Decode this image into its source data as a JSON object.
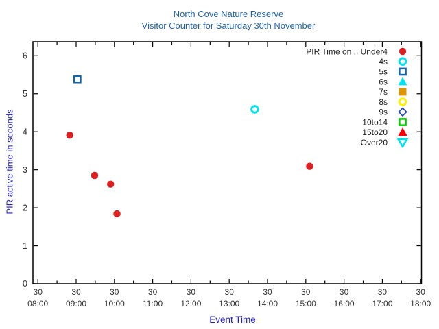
{
  "chart_data": {
    "type": "scatter",
    "title": "North Cove Nature Reserve",
    "subtitle": "Visitor Counter for Saturday 30th November",
    "xlabel": "Event Time",
    "ylabel": "PIR active time in seconds",
    "x_tick_day": "30",
    "x_ticks": [
      "08:00",
      "09:00",
      "10:00",
      "11:00",
      "12:00",
      "13:00",
      "14:00",
      "15:00",
      "16:00",
      "17:00",
      "18:00"
    ],
    "x_minor_tick_minutes": 30,
    "y_ticks": [
      0,
      1,
      2,
      3,
      4,
      5,
      6
    ],
    "ylim": [
      0,
      6.37
    ],
    "xlim_hours_after_0800": [
      -0.13,
      10.04
    ],
    "grid": false,
    "legend_position": "top-right-inside",
    "colors": {
      "title_text": "#1f63ad",
      "axis_label_text": "#2424cc",
      "tick_text": "#333333",
      "legend_text": "#1a1a1a",
      "border": "#000000"
    },
    "series": [
      {
        "label": "PIR Time on .. Under4",
        "marker": "circle-filled",
        "color": "#dd1f1f",
        "points": [
          {
            "time": "08:50",
            "seconds": 3.91
          },
          {
            "time": "09:29",
            "seconds": 2.85
          },
          {
            "time": "09:54",
            "seconds": 2.62
          },
          {
            "time": "10:04",
            "seconds": 1.84
          },
          {
            "time": "15:06",
            "seconds": 3.09
          }
        ]
      },
      {
        "label": "4s",
        "marker": "circle-open",
        "color": "#00e2ee",
        "points": [
          {
            "time": "13:40",
            "seconds": 4.59
          }
        ]
      },
      {
        "label": "5s",
        "marker": "square-open",
        "color": "#1565aa",
        "points": [
          {
            "time": "09:02",
            "seconds": 5.38
          }
        ]
      },
      {
        "label": "6s",
        "marker": "triangle-up-filled",
        "color": "#00e2ee",
        "points": []
      },
      {
        "label": "7s",
        "marker": "square-filled",
        "color": "#dd9500",
        "points": []
      },
      {
        "label": "8s",
        "marker": "circle-open",
        "color": "#fff000",
        "points": []
      },
      {
        "label": "9s",
        "marker": "diamond-open",
        "color": "#1a46c8",
        "points": []
      },
      {
        "label": "10to14",
        "marker": "square-open",
        "color": "#00cc00",
        "points": []
      },
      {
        "label": "15to20",
        "marker": "triangle-up-filled",
        "color": "#ff0000",
        "points": []
      },
      {
        "label": "Over20",
        "marker": "triangle-down-open",
        "color": "#00e2ee",
        "points": []
      }
    ]
  }
}
